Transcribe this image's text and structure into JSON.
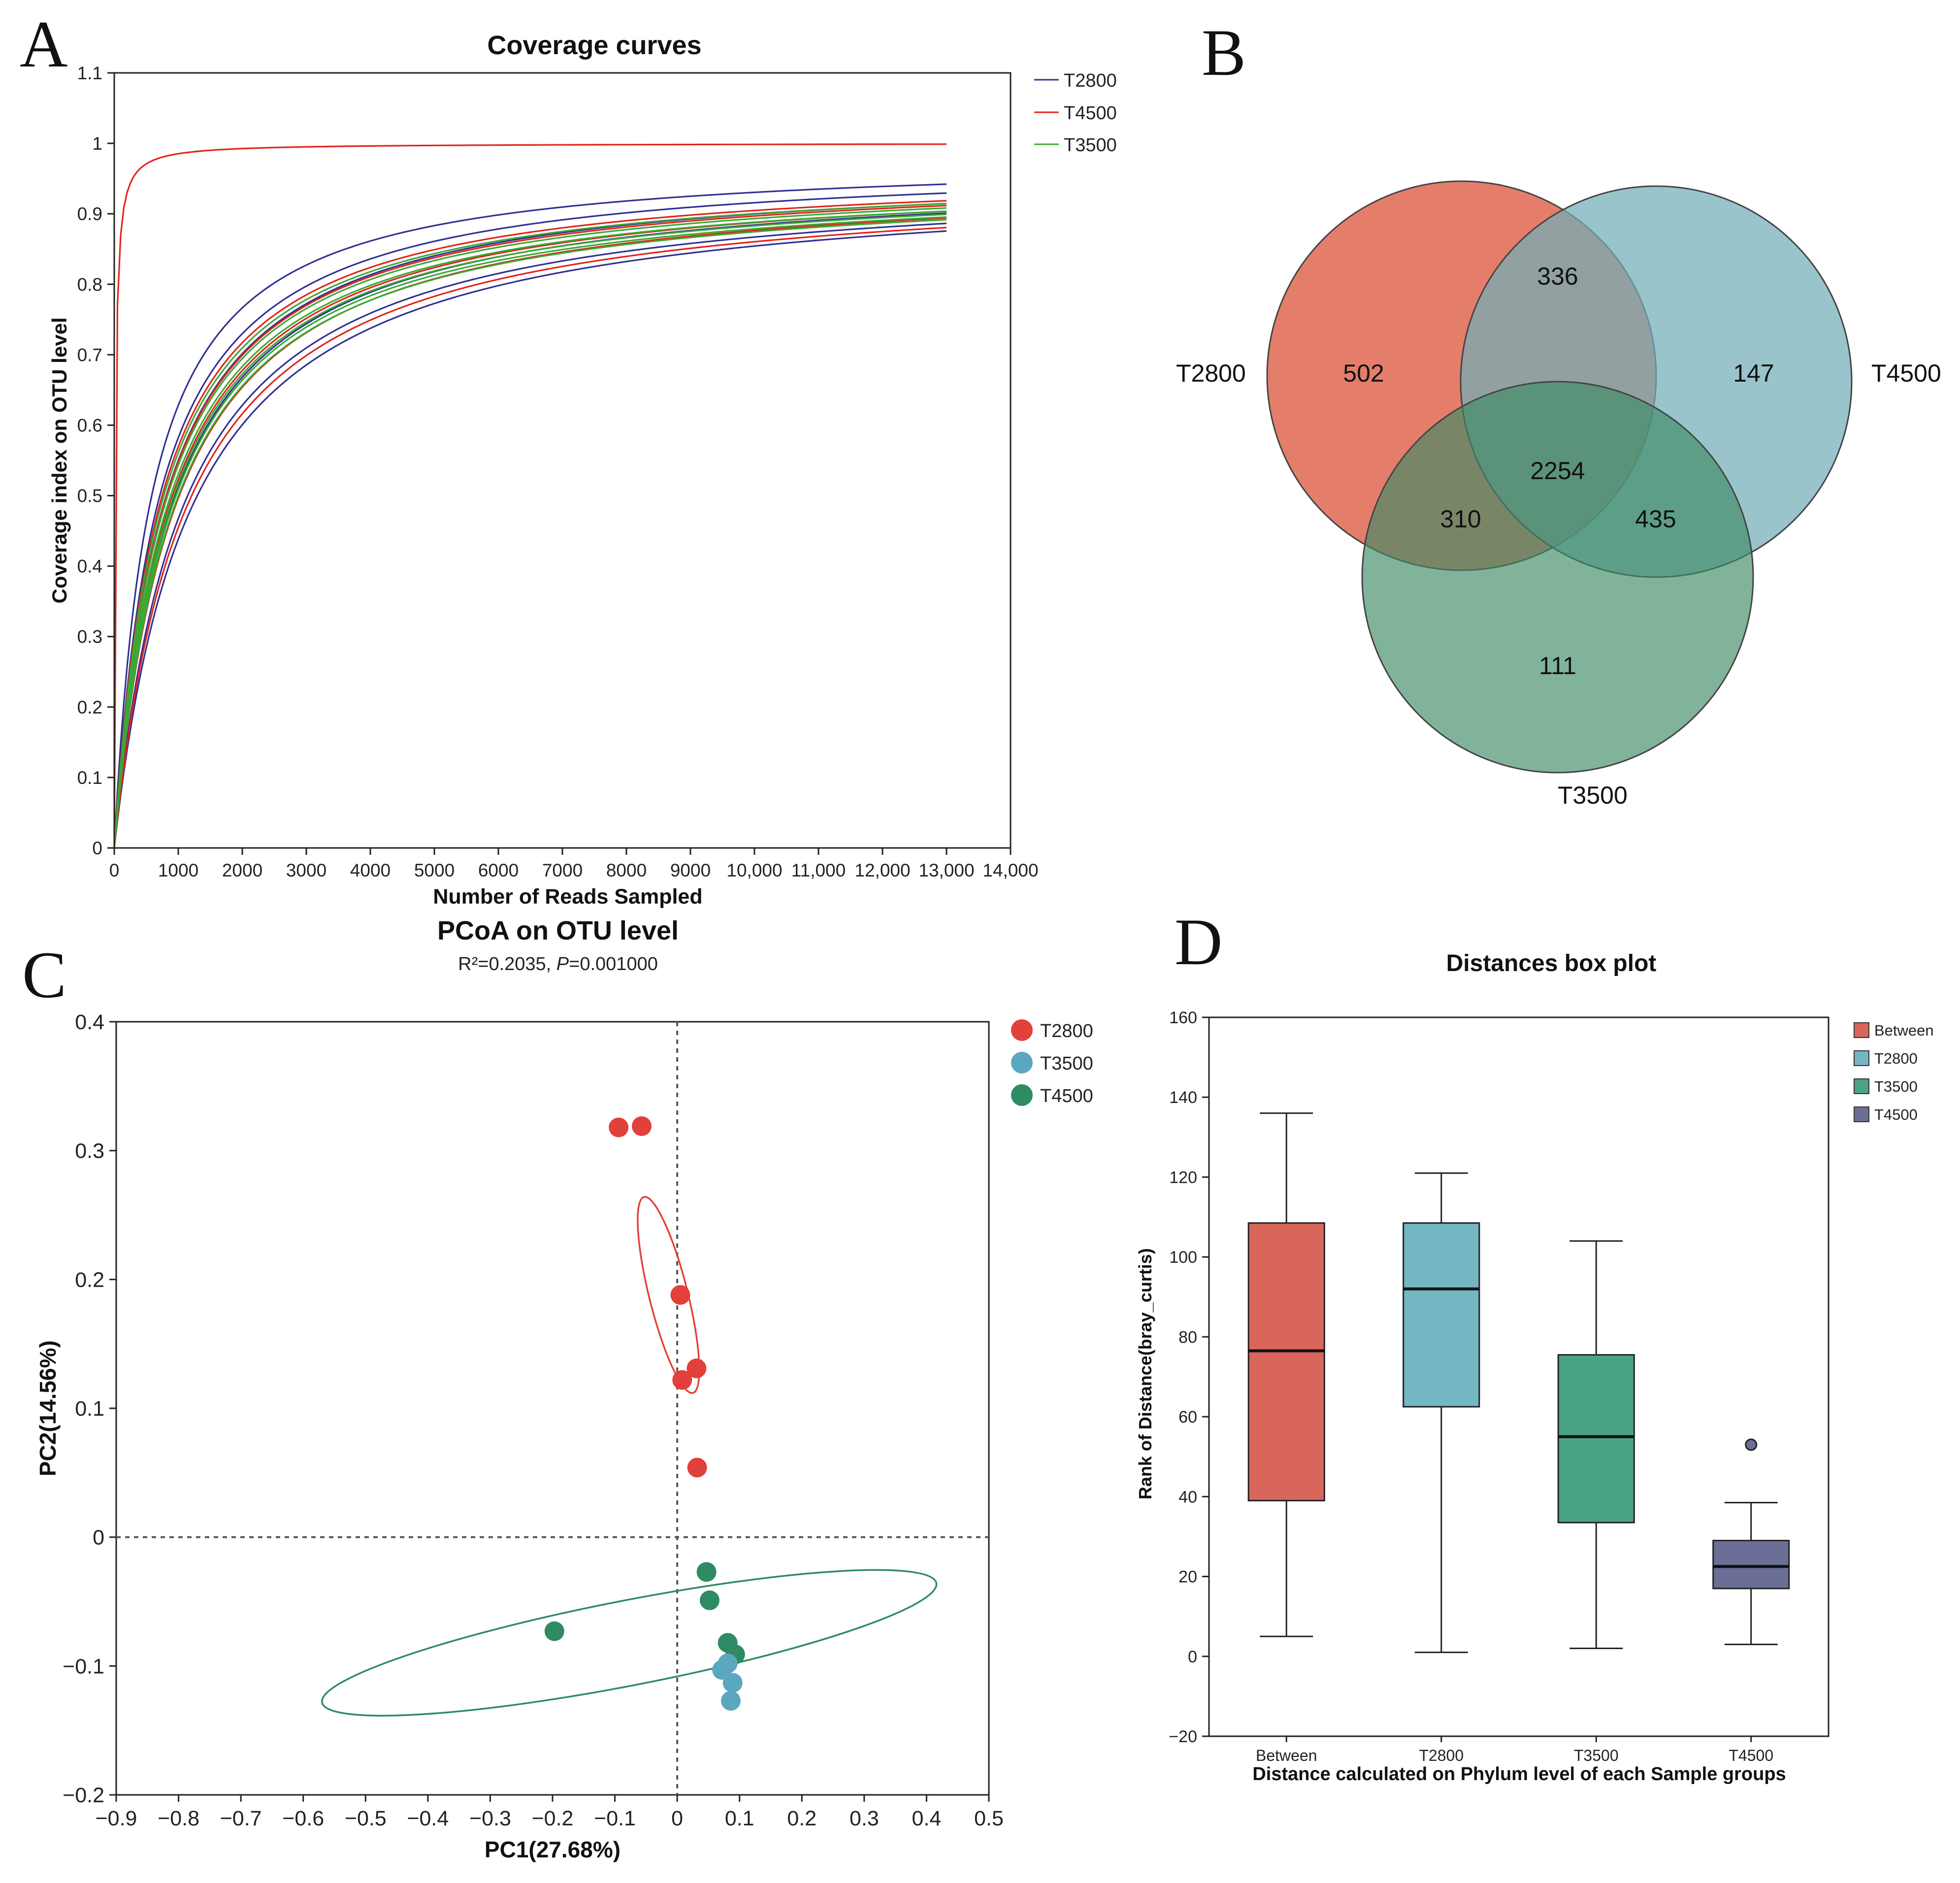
{
  "panels": {
    "a": {
      "letter": "A"
    },
    "b": {
      "letter": "B"
    },
    "c": {
      "letter": "C"
    },
    "d": {
      "letter": "D"
    }
  },
  "chart_data": [
    {
      "id": "A",
      "type": "line",
      "title": "Coverage curves",
      "xlabel": "Number of Reads Sampled",
      "ylabel": "Coverage index on OTU level",
      "xlim": [
        0,
        14000
      ],
      "ylim": [
        0,
        1.1
      ],
      "x_ticks": [
        "0",
        "1000",
        "2000",
        "3000",
        "4000",
        "5000",
        "6000",
        "7000",
        "8000",
        "9000",
        "10,000",
        "11,000",
        "12,000",
        "13,000",
        "14,000"
      ],
      "y_ticks": [
        "0",
        "0.1",
        "0.2",
        "0.3",
        "0.4",
        "0.5",
        "0.6",
        "0.7",
        "0.8",
        "0.9",
        "1",
        "1.1"
      ],
      "legend": [
        {
          "name": "T2800",
          "color": "#2e3192"
        },
        {
          "name": "T4500",
          "color": "#e2231a"
        },
        {
          "name": "T3500",
          "color": "#3aa935"
        }
      ],
      "x_max_sampled": 13000,
      "series": [
        {
          "group": "T2800",
          "color": "#2e3192",
          "final": 0.983,
          "k": 565
        },
        {
          "group": "T2800",
          "color": "#2e3192",
          "final": 0.978,
          "k": 680
        },
        {
          "group": "T2800",
          "color": "#2e3192",
          "final": 0.968,
          "k": 760
        },
        {
          "group": "T2800",
          "color": "#2e3192",
          "final": 0.962,
          "k": 880
        },
        {
          "group": "T2800",
          "color": "#2e3192",
          "final": 0.958,
          "k": 1050
        },
        {
          "group": "T2800",
          "color": "#2e3192",
          "final": 0.955,
          "k": 1180
        },
        {
          "group": "T4500",
          "color": "#e2231a",
          "final": 1.0,
          "k": 15
        },
        {
          "group": "T4500",
          "color": "#e2231a",
          "final": 0.968,
          "k": 700
        },
        {
          "group": "T4500",
          "color": "#e2231a",
          "final": 0.965,
          "k": 760
        },
        {
          "group": "T4500",
          "color": "#e2231a",
          "final": 0.962,
          "k": 840
        },
        {
          "group": "T4500",
          "color": "#e2231a",
          "final": 0.958,
          "k": 930
        },
        {
          "group": "T4500",
          "color": "#e2231a",
          "final": 0.955,
          "k": 1100
        },
        {
          "group": "T3500",
          "color": "#3aa935",
          "final": 0.965,
          "k": 720
        },
        {
          "group": "T3500",
          "color": "#3aa935",
          "final": 0.962,
          "k": 770
        },
        {
          "group": "T3500",
          "color": "#3aa935",
          "final": 0.96,
          "k": 810
        },
        {
          "group": "T3500",
          "color": "#3aa935",
          "final": 0.958,
          "k": 850
        },
        {
          "group": "T3500",
          "color": "#3aa935",
          "final": 0.956,
          "k": 880
        },
        {
          "group": "T3500",
          "color": "#3aa935",
          "final": 0.954,
          "k": 910
        }
      ]
    },
    {
      "id": "B",
      "type": "venn",
      "sets": [
        {
          "name": "T2800",
          "color": "#d9472b"
        },
        {
          "name": "T4500",
          "color": "#72adb8"
        },
        {
          "name": "T3500",
          "color": "#3e8a66"
        }
      ],
      "regions": {
        "T2800_only": "502",
        "T4500_only": "147",
        "T3500_only": "111",
        "T2800_T4500": "336",
        "T2800_T3500": "310",
        "T4500_T3500": "435",
        "all": "2254"
      }
    },
    {
      "id": "C",
      "type": "scatter",
      "title": "PCoA on OTU level",
      "subtitle_prefix": "R²=0.2035, ",
      "subtitle_p_symbol": "P",
      "subtitle_p_value": "=0.001000",
      "xlabel": "PC1(27.68%)",
      "ylabel": "PC2(14.56%)",
      "xlim": [
        -0.9,
        0.5
      ],
      "ylim": [
        -0.2,
        0.4
      ],
      "x_ticks": [
        "−0.9",
        "−0.8",
        "−0.7",
        "−0.6",
        "−0.5",
        "−0.4",
        "−0.3",
        "−0.2",
        "−0.1",
        "0",
        "0.1",
        "0.2",
        "0.3",
        "0.4",
        "0.5"
      ],
      "y_ticks": [
        "−0.2",
        "−0.1",
        "0",
        "0.1",
        "0.2",
        "0.3",
        "0.4"
      ],
      "legend": [
        {
          "name": "T2800",
          "color": "#e2403a"
        },
        {
          "name": "T3500",
          "color": "#5ba7bf"
        },
        {
          "name": "T4500",
          "color": "#2e8b64"
        }
      ],
      "series": [
        {
          "name": "T2800",
          "color": "#e2403a",
          "points": [
            [
              -0.094,
              0.318
            ],
            [
              -0.057,
              0.319
            ],
            [
              0.005,
              0.188
            ],
            [
              0.031,
              0.131
            ],
            [
              0.008,
              0.122
            ],
            [
              0.032,
              0.054
            ]
          ],
          "ellipse": {
            "cx": -0.014,
            "cy": 0.188,
            "rx": 0.162,
            "ry": 0.015,
            "angle_deg": -76
          }
        },
        {
          "name": "T3500",
          "color": "#5ba7bf",
          "points": [
            [
              0.072,
              -0.103
            ],
            [
              0.081,
              -0.098
            ],
            [
              0.089,
              -0.113
            ],
            [
              0.086,
              -0.127
            ]
          ],
          "ellipse": null
        },
        {
          "name": "T4500",
          "color": "#2e8b64",
          "points": [
            [
              -0.197,
              -0.073
            ],
            [
              0.047,
              -0.027
            ],
            [
              0.052,
              -0.049
            ],
            [
              0.081,
              -0.082
            ],
            [
              0.093,
              -0.091
            ]
          ],
          "ellipse": {
            "cx": -0.077,
            "cy": -0.082,
            "rx": 0.502,
            "ry": 0.033,
            "angle_deg": 11
          }
        }
      ],
      "reference_lines": {
        "x": 0,
        "y": 0
      }
    },
    {
      "id": "D",
      "type": "box",
      "title": "Distances box plot",
      "xlabel": "Distance calculated on Phylum level of each Sample groups",
      "ylabel": "Rank of Distance(bray_curtis)",
      "ylim": [
        -20,
        160
      ],
      "y_ticks": [
        "−20",
        "0",
        "20",
        "40",
        "60",
        "80",
        "100",
        "120",
        "140",
        "160"
      ],
      "categories": [
        "Between",
        "T2800",
        "T3500",
        "T4500"
      ],
      "legend": [
        {
          "name": "Between",
          "color": "#d9665a"
        },
        {
          "name": "T2800",
          "color": "#74b7c3"
        },
        {
          "name": "T3500",
          "color": "#4aa385"
        },
        {
          "name": "T4500",
          "color": "#6b6f96"
        }
      ],
      "boxes": [
        {
          "name": "Between",
          "color": "#d9665a",
          "whisker_low": 5,
          "q1": 39,
          "median": 76.5,
          "q3": 108.5,
          "whisker_high": 136,
          "outliers": []
        },
        {
          "name": "T2800",
          "color": "#74b7c3",
          "whisker_low": 1,
          "q1": 62.5,
          "median": 92,
          "q3": 108.5,
          "whisker_high": 121,
          "outliers": []
        },
        {
          "name": "T3500",
          "color": "#4aa385",
          "whisker_low": 2,
          "q1": 33.5,
          "median": 55,
          "q3": 75.5,
          "whisker_high": 104,
          "outliers": []
        },
        {
          "name": "T4500",
          "color": "#6b6f96",
          "whisker_low": 3,
          "q1": 17,
          "median": 22.5,
          "q3": 29,
          "whisker_high": 38.5,
          "outliers": [
            53
          ]
        }
      ]
    }
  ]
}
